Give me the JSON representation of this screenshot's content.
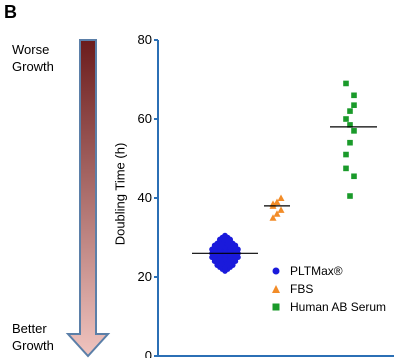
{
  "panel_label": "B",
  "growth_arrow": {
    "top_text": [
      "Worse",
      "Growth"
    ],
    "bottom_text": [
      "Better",
      "Growth"
    ],
    "gradient": [
      "#6b1c1c",
      "#f0c4bf"
    ]
  },
  "chart_data": {
    "type": "scatter",
    "ylabel": "Doubling Time (h)",
    "xlabel": "",
    "ylim": [
      0,
      80
    ],
    "yticks": [
      0,
      20,
      40,
      60,
      80
    ],
    "grid": false,
    "legend_position": "bottom-right",
    "series": [
      {
        "name": "PLTMax®",
        "marker": "circle",
        "color": "#1a1adb",
        "median": 26,
        "values": [
          21.5,
          22,
          22,
          22.5,
          22.5,
          22.5,
          23,
          23,
          23,
          23,
          23.5,
          23.5,
          23.5,
          23.5,
          24,
          24,
          24,
          24,
          24,
          24.5,
          24.5,
          24.5,
          24.5,
          24.5,
          25,
          25,
          25,
          25,
          25,
          25,
          25.5,
          25.5,
          25.5,
          25.5,
          25.5,
          26,
          26,
          26,
          26,
          26,
          26,
          26.5,
          26.5,
          26.5,
          26.5,
          26.5,
          27,
          27,
          27,
          27,
          27,
          27,
          27.5,
          27.5,
          27.5,
          27.5,
          27.5,
          28,
          28,
          28,
          28,
          28,
          28.5,
          28.5,
          28.5,
          28.5,
          29,
          29,
          29,
          29.5,
          29.5,
          29.5,
          30,
          30,
          30.5
        ]
      },
      {
        "name": "FBS",
        "marker": "triangle",
        "color": "#f28c28",
        "median": 38,
        "values": [
          35,
          36,
          37,
          38,
          38.5,
          39,
          40
        ]
      },
      {
        "name": "Human AB Serum",
        "marker": "square",
        "color": "#1a9a2a",
        "median": 58,
        "values": [
          40.5,
          45.5,
          47.5,
          51,
          54,
          57,
          58.5,
          60,
          62,
          63.5,
          66,
          69
        ]
      }
    ]
  }
}
